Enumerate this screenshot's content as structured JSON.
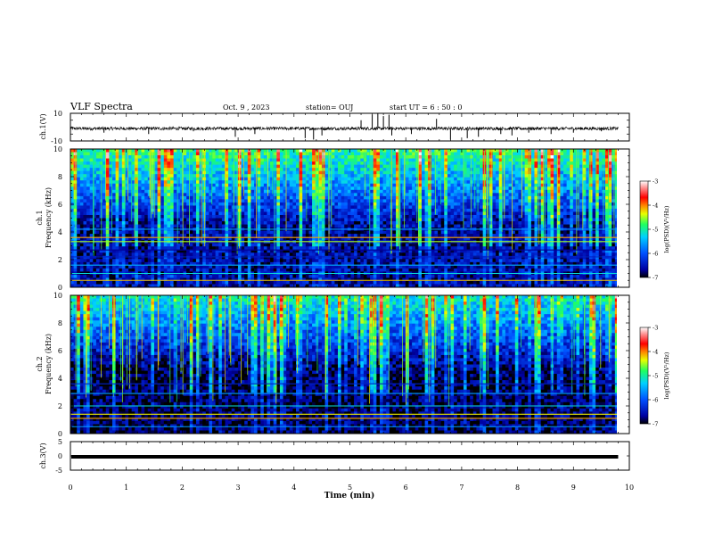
{
  "header": {
    "title": "VLF Spectra",
    "date": "Oct. 9  , 2023",
    "station": "station= OUJ",
    "start": "start  UT =   6  : 50 : 0"
  },
  "chart_data": [
    {
      "id": "ch1-waveform",
      "type": "line",
      "ylabel": "ch.1(V)",
      "ylim": [
        -10,
        10
      ],
      "yticks": [
        "10",
        "-10"
      ],
      "baseline": -1,
      "spikes_min": [
        [
          0.6,
          -4
        ],
        [
          1.4,
          -5
        ],
        [
          2.2,
          -3
        ],
        [
          2.95,
          -7
        ],
        [
          3.3,
          -5
        ],
        [
          4.2,
          -8
        ],
        [
          4.35,
          -9
        ],
        [
          4.5,
          -6
        ],
        [
          5.2,
          5
        ],
        [
          5.4,
          9
        ],
        [
          5.5,
          10
        ],
        [
          5.6,
          8
        ],
        [
          5.7,
          9
        ],
        [
          5.75,
          -6
        ],
        [
          6.1,
          -5
        ],
        [
          6.55,
          6
        ],
        [
          6.8,
          -9
        ],
        [
          7.1,
          -8
        ],
        [
          7.3,
          -7
        ],
        [
          7.7,
          -5
        ],
        [
          7.9,
          -6
        ],
        [
          8.2,
          -4
        ],
        [
          8.6,
          -5
        ],
        [
          9.0,
          -4
        ],
        [
          9.5,
          -3
        ]
      ]
    },
    {
      "id": "ch1-spectrogram",
      "type": "heatmap",
      "ylabel": "ch.1\nFrequency  (kHz)",
      "ylim": [
        0,
        10
      ],
      "yticks": [
        "0",
        "2",
        "4",
        "6",
        "8",
        "10"
      ],
      "bands": [
        {
          "kHz": 0.5,
          "level": -4.2
        },
        {
          "kHz": 1.0,
          "level": -5.2
        },
        {
          "kHz": 1.6,
          "level": -5.5
        },
        {
          "kHz": 2.2,
          "level": -6.4
        },
        {
          "kHz": 2.7,
          "level": -6.7
        },
        {
          "kHz": 3.3,
          "level": -4.5
        },
        {
          "kHz": 3.6,
          "level": -4.1
        },
        {
          "kHz": 4.2,
          "level": -5.6
        }
      ],
      "colorbar": {
        "label": "log(PSD)(V²/Hz)",
        "range": [
          -7,
          -3
        ],
        "ticks": [
          "-3",
          "-4",
          "-5",
          "-6",
          "-7"
        ]
      }
    },
    {
      "id": "ch2-spectrogram",
      "type": "heatmap",
      "ylabel": "ch.2\nFrequency  (kHz)",
      "ylim": [
        0,
        10
      ],
      "yticks": [
        "0",
        "2",
        "4",
        "6",
        "8",
        "10"
      ],
      "bands": [
        {
          "kHz": 0.5,
          "level": -5.6
        },
        {
          "kHz": 1.1,
          "level": -4.1
        },
        {
          "kHz": 1.4,
          "level": -4.3
        },
        {
          "kHz": 2.0,
          "level": -5.2
        },
        {
          "kHz": 2.9,
          "level": -5.6
        },
        {
          "kHz": 3.6,
          "level": -6.4
        }
      ],
      "colorbar": {
        "label": "log(PSD)(V²/Hz)",
        "range": [
          -7,
          -3
        ],
        "ticks": [
          "-3",
          "-4",
          "-5",
          "-6",
          "-7"
        ]
      }
    },
    {
      "id": "ch3-waveform",
      "type": "line",
      "ylabel": "ch.3(V)",
      "ylim": [
        -5,
        5
      ],
      "yticks": [
        "5",
        "0",
        "-5"
      ],
      "baseline": -0.3
    }
  ],
  "xaxis": {
    "label": "Time  (min)",
    "range": [
      0,
      10
    ],
    "data_end": 9.8,
    "ticks": [
      "0",
      "1",
      "2",
      "3",
      "4",
      "5",
      "6",
      "7",
      "8",
      "9",
      "10"
    ]
  }
}
